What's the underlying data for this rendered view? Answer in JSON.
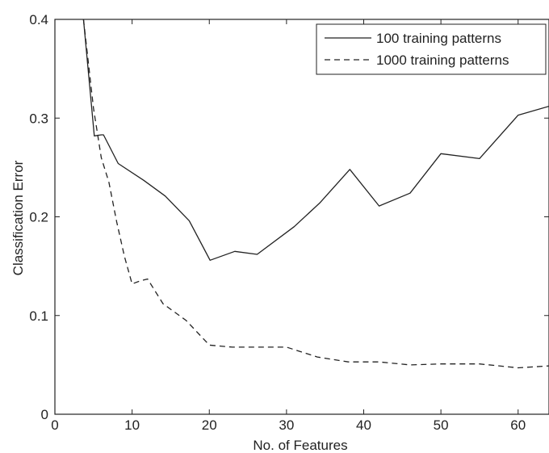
{
  "chart_data": {
    "type": "line",
    "title": "",
    "xlabel": "No. of Features",
    "ylabel": "Classification Error",
    "xlim": [
      0,
      64
    ],
    "ylim": [
      0,
      0.4
    ],
    "xticks": [
      0,
      10,
      20,
      30,
      40,
      50,
      60
    ],
    "yticks": [
      0,
      0.1,
      0.2,
      0.3,
      0.4
    ],
    "xtick_labels": [
      "0",
      "10",
      "20",
      "30",
      "40",
      "50",
      "60"
    ],
    "ytick_labels": [
      "0",
      "0.1",
      "0.2",
      "0.3",
      "0.4"
    ],
    "grid": false,
    "legend": "top-right",
    "series": [
      {
        "name": "100 training patterns",
        "style": "solid",
        "x": [
          3.7,
          5.1,
          6.0,
          6.3,
          8.2,
          11.5,
          14.3,
          17.4,
          20.1,
          23.3,
          26.2,
          31.0,
          34.3,
          38.2,
          42.0,
          46.0,
          50.0,
          55.0,
          60.0,
          64.0
        ],
        "y": [
          0.4,
          0.282,
          0.283,
          0.283,
          0.254,
          0.237,
          0.221,
          0.196,
          0.156,
          0.165,
          0.162,
          0.19,
          0.214,
          0.248,
          0.211,
          0.224,
          0.264,
          0.259,
          0.303,
          0.312
        ]
      },
      {
        "name": "1000 training patterns",
        "style": "dashed",
        "x": [
          3.7,
          5.0,
          6.0,
          7.0,
          8.0,
          9.0,
          10.0,
          11.0,
          12.0,
          14.0,
          17.0,
          20.0,
          23.0,
          26.0,
          30.0,
          34.0,
          38.0,
          42.0,
          46.0,
          50.0,
          55.0,
          60.0,
          64.0
        ],
        "y": [
          0.4,
          0.31,
          0.26,
          0.235,
          0.195,
          0.16,
          0.132,
          0.135,
          0.137,
          0.112,
          0.095,
          0.07,
          0.068,
          0.068,
          0.068,
          0.058,
          0.053,
          0.053,
          0.05,
          0.051,
          0.051,
          0.047,
          0.049
        ]
      }
    ]
  }
}
